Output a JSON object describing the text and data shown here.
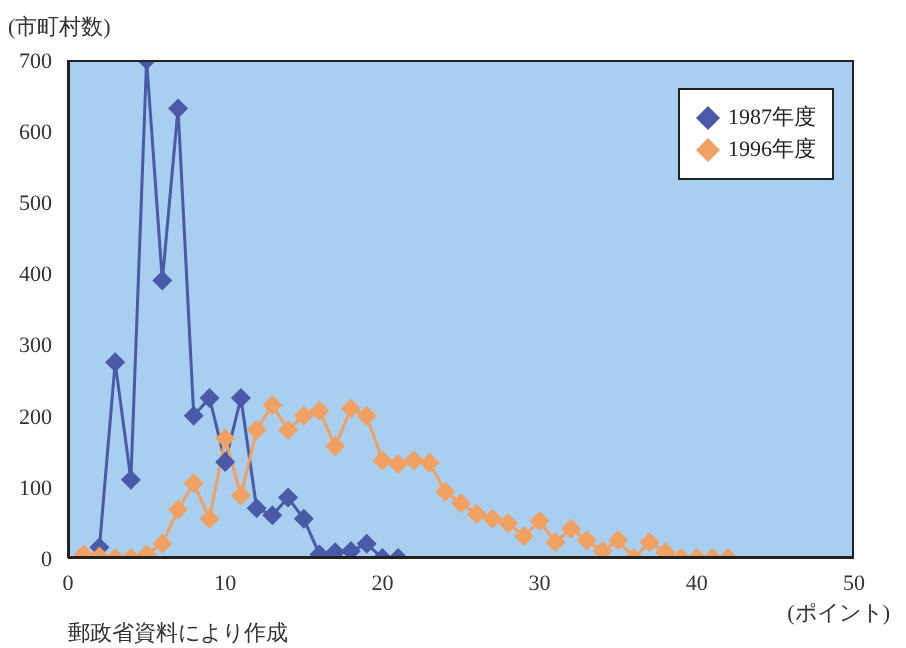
{
  "chart_data": {
    "type": "line",
    "ylabel": "(市町村数)",
    "xlabel": "(ポイント)",
    "annotations": [
      "郵政省資料により作成"
    ],
    "xlim": [
      0,
      50
    ],
    "xticks": [
      0,
      10,
      20,
      30,
      40,
      50
    ],
    "ylim": [
      0,
      700
    ],
    "yticks": [
      0,
      100,
      200,
      300,
      400,
      500,
      600,
      700
    ],
    "grid": false,
    "legend": "top right",
    "marker": "diamond",
    "line_style": "solid",
    "series": [
      {
        "name": "1987年度",
        "color": "#4a5aa8",
        "x": [
          2,
          3,
          4,
          5,
          6,
          7,
          8,
          9,
          10,
          11,
          12,
          13,
          14,
          15,
          16,
          17,
          18,
          19,
          20,
          21
        ],
        "values": [
          15,
          275,
          110,
          700,
          390,
          632,
          200,
          225,
          135,
          225,
          70,
          60,
          85,
          55,
          5,
          8,
          10,
          20,
          0,
          0
        ]
      },
      {
        "name": "1996年度",
        "color": "#f0a060",
        "x": [
          1,
          2,
          3,
          4,
          5,
          6,
          7,
          8,
          9,
          10,
          11,
          12,
          13,
          14,
          15,
          16,
          17,
          18,
          19,
          20,
          21,
          22,
          23,
          24,
          25,
          26,
          27,
          28,
          29,
          30,
          31,
          32,
          33,
          34,
          35,
          36,
          37,
          38,
          39,
          40,
          41,
          42
        ],
        "values": [
          5,
          2,
          0,
          0,
          5,
          20,
          68,
          105,
          55,
          168,
          88,
          180,
          215,
          180,
          200,
          207,
          157,
          210,
          200,
          137,
          132,
          137,
          134,
          93,
          77,
          62,
          55,
          49,
          31,
          52,
          22,
          41,
          25,
          10,
          25,
          0,
          22,
          8,
          0,
          0,
          0,
          0
        ]
      }
    ]
  }
}
